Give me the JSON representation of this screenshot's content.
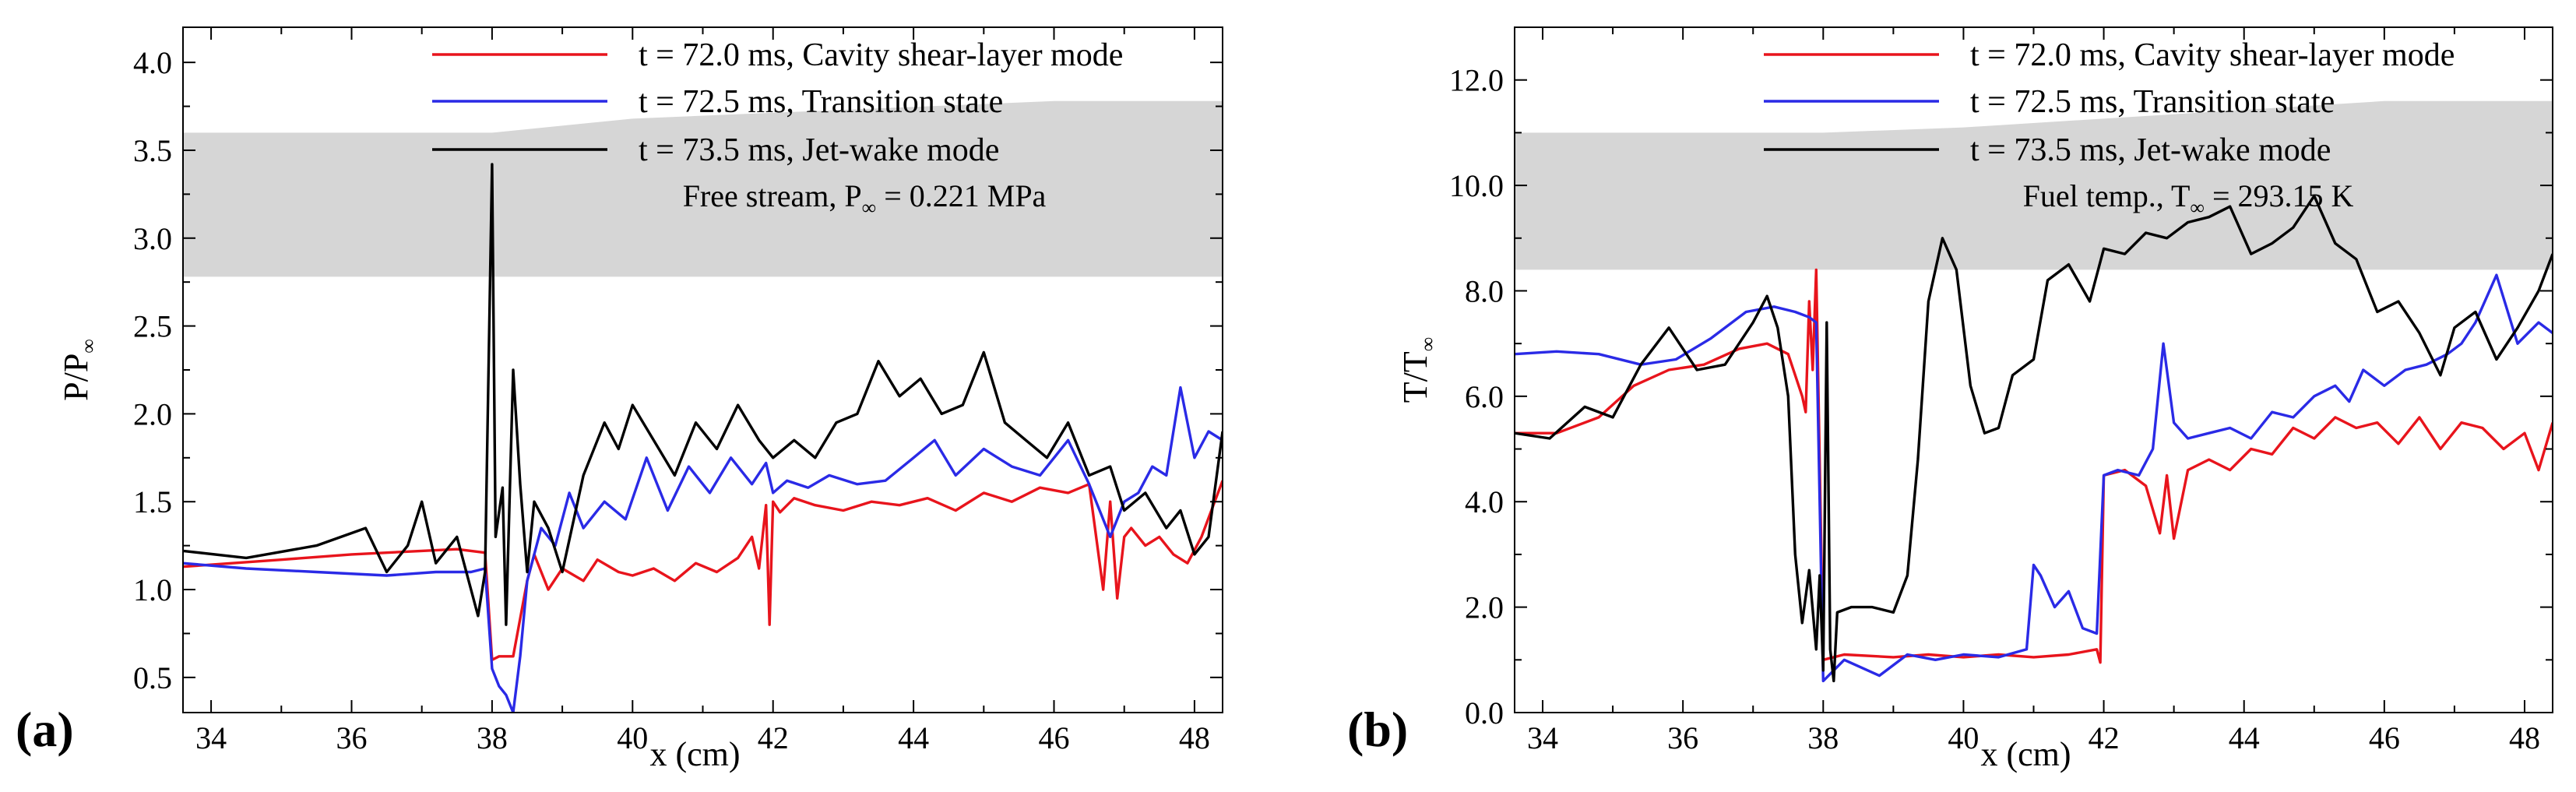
{
  "colors": {
    "red": "#e8141c",
    "blue": "#2a2ae6",
    "black": "#000000",
    "band": "#d6d6d6"
  },
  "chart_data": [
    {
      "type": "line",
      "panel_label": "(a)",
      "xlabel": "x (cm)",
      "ylabel": "P/P",
      "ylabel_sub": "∞",
      "xlim": [
        33.6,
        48.4
      ],
      "ylim": [
        0.3,
        4.2
      ],
      "x_ticks": [
        "34",
        "36",
        "38",
        "40",
        "42",
        "44",
        "46",
        "48"
      ],
      "y_ticks": [
        "0.5",
        "1.0",
        "1.5",
        "2.0",
        "2.5",
        "3.0",
        "3.5",
        "4.0"
      ],
      "annotation": {
        "text": "Free stream, P",
        "sub": "∞",
        "rest": " = 0.221 MPa"
      },
      "legend_band": [
        [
          33.6,
          3.6
        ],
        [
          38,
          3.6
        ],
        [
          40,
          3.68
        ],
        [
          46,
          3.78
        ],
        [
          48.4,
          3.78
        ]
      ],
      "legend_band_bottom": 2.78,
      "series": [
        {
          "name": "t = 72.0 ms, Cavity shear-layer mode",
          "color": "#e8141c",
          "x": [
            33.6,
            35,
            36,
            37,
            37.5,
            37.9,
            38.0,
            38.1,
            38.3,
            38.5,
            38.6,
            38.8,
            39.0,
            39.3,
            39.5,
            39.8,
            40.0,
            40.3,
            40.6,
            40.9,
            41.2,
            41.5,
            41.7,
            41.8,
            41.9,
            41.95,
            42.0,
            42.1,
            42.3,
            42.6,
            43.0,
            43.4,
            43.8,
            44.2,
            44.6,
            45.0,
            45.4,
            45.8,
            46.2,
            46.5,
            46.7,
            46.8,
            46.9,
            47.0,
            47.1,
            47.3,
            47.5,
            47.7,
            47.9,
            48.1,
            48.4
          ],
          "y": [
            1.13,
            1.17,
            1.2,
            1.22,
            1.23,
            1.21,
            0.6,
            0.62,
            0.62,
            1.05,
            1.2,
            1.0,
            1.12,
            1.05,
            1.17,
            1.1,
            1.08,
            1.12,
            1.05,
            1.15,
            1.1,
            1.18,
            1.3,
            1.12,
            1.48,
            0.8,
            1.5,
            1.44,
            1.52,
            1.48,
            1.45,
            1.5,
            1.48,
            1.52,
            1.45,
            1.55,
            1.5,
            1.58,
            1.55,
            1.6,
            1.0,
            1.5,
            0.95,
            1.3,
            1.35,
            1.25,
            1.3,
            1.2,
            1.15,
            1.3,
            1.62
          ]
        },
        {
          "name": "t = 72.5 ms, Transition state",
          "color": "#2a2ae6",
          "x": [
            33.6,
            34.5,
            35.5,
            36.5,
            37.2,
            37.7,
            37.9,
            38.0,
            38.1,
            38.2,
            38.3,
            38.4,
            38.5,
            38.7,
            38.9,
            39.1,
            39.3,
            39.6,
            39.9,
            40.2,
            40.5,
            40.8,
            41.1,
            41.4,
            41.7,
            41.9,
            42.0,
            42.2,
            42.5,
            42.8,
            43.2,
            43.6,
            44.0,
            44.3,
            44.6,
            45.0,
            45.4,
            45.8,
            46.2,
            46.5,
            46.8,
            47.0,
            47.2,
            47.4,
            47.6,
            47.8,
            48.0,
            48.2,
            48.4
          ],
          "y": [
            1.15,
            1.12,
            1.1,
            1.08,
            1.1,
            1.1,
            1.12,
            0.55,
            0.45,
            0.4,
            0.3,
            0.62,
            1.05,
            1.35,
            1.25,
            1.55,
            1.35,
            1.5,
            1.4,
            1.75,
            1.45,
            1.7,
            1.55,
            1.75,
            1.6,
            1.72,
            1.55,
            1.62,
            1.58,
            1.65,
            1.6,
            1.62,
            1.75,
            1.85,
            1.65,
            1.8,
            1.7,
            1.65,
            1.85,
            1.6,
            1.3,
            1.5,
            1.55,
            1.7,
            1.65,
            2.15,
            1.75,
            1.9,
            1.85
          ]
        },
        {
          "name": "t = 73.5 ms, Jet-wake mode",
          "color": "#000000",
          "x": [
            33.6,
            34.5,
            35.5,
            36.2,
            36.5,
            36.8,
            37.0,
            37.2,
            37.5,
            37.8,
            37.9,
            38.0,
            38.05,
            38.15,
            38.2,
            38.3,
            38.4,
            38.5,
            38.6,
            38.8,
            39.0,
            39.3,
            39.6,
            39.8,
            40.0,
            40.3,
            40.6,
            40.9,
            41.2,
            41.5,
            41.8,
            42.0,
            42.3,
            42.6,
            42.9,
            43.2,
            43.5,
            43.8,
            44.1,
            44.4,
            44.7,
            45.0,
            45.3,
            45.6,
            45.9,
            46.2,
            46.5,
            46.8,
            47.0,
            47.3,
            47.6,
            47.8,
            48.0,
            48.2,
            48.4
          ],
          "y": [
            1.22,
            1.18,
            1.25,
            1.35,
            1.1,
            1.25,
            1.5,
            1.15,
            1.3,
            0.85,
            1.1,
            3.42,
            1.3,
            1.58,
            0.8,
            2.25,
            1.6,
            1.1,
            1.5,
            1.35,
            1.1,
            1.65,
            1.95,
            1.8,
            2.05,
            1.85,
            1.65,
            1.95,
            1.8,
            2.05,
            1.85,
            1.75,
            1.85,
            1.75,
            1.95,
            2.0,
            2.3,
            2.1,
            2.2,
            2.0,
            2.05,
            2.35,
            1.95,
            1.85,
            1.75,
            1.95,
            1.65,
            1.7,
            1.45,
            1.55,
            1.35,
            1.45,
            1.2,
            1.3,
            1.9
          ]
        }
      ]
    },
    {
      "type": "line",
      "panel_label": "(b)",
      "xlabel": "x (cm)",
      "ylabel": "T/T",
      "ylabel_sub": "∞",
      "xlim": [
        33.6,
        48.4
      ],
      "ylim": [
        0.0,
        13.0
      ],
      "x_ticks": [
        "34",
        "36",
        "38",
        "40",
        "42",
        "44",
        "46",
        "48"
      ],
      "y_ticks": [
        "0.0",
        "2.0",
        "4.0",
        "6.0",
        "8.0",
        "10.0",
        "12.0"
      ],
      "annotation": {
        "text": "Fuel temp., T",
        "sub": "∞",
        "rest": " = 293.15 K"
      },
      "legend_band": [
        [
          33.6,
          11.0
        ],
        [
          38,
          11.0
        ],
        [
          40,
          11.1
        ],
        [
          46,
          11.6
        ],
        [
          48.4,
          11.6
        ]
      ],
      "legend_band_bottom": 8.4,
      "series": [
        {
          "name": "t = 72.0 ms, Cavity shear-layer mode",
          "color": "#e8141c",
          "x": [
            33.6,
            34.2,
            34.8,
            35.3,
            35.8,
            36.3,
            36.8,
            37.2,
            37.5,
            37.7,
            37.75,
            37.8,
            37.85,
            37.9,
            38.0,
            38.3,
            39.0,
            39.5,
            40.0,
            40.5,
            41.0,
            41.5,
            41.9,
            41.95,
            42.0,
            42.3,
            42.6,
            42.8,
            42.9,
            43.0,
            43.2,
            43.5,
            43.8,
            44.1,
            44.4,
            44.7,
            45.0,
            45.3,
            45.6,
            45.9,
            46.2,
            46.5,
            46.8,
            47.1,
            47.4,
            47.7,
            48.0,
            48.2,
            48.4
          ],
          "y": [
            5.3,
            5.3,
            5.6,
            6.2,
            6.5,
            6.6,
            6.9,
            7.0,
            6.8,
            6.0,
            5.7,
            7.8,
            6.5,
            8.4,
            1.0,
            1.1,
            1.05,
            1.1,
            1.05,
            1.1,
            1.05,
            1.1,
            1.2,
            0.95,
            4.5,
            4.6,
            4.3,
            3.4,
            4.5,
            3.3,
            4.6,
            4.8,
            4.6,
            5.0,
            4.9,
            5.4,
            5.2,
            5.6,
            5.4,
            5.5,
            5.1,
            5.6,
            5.0,
            5.5,
            5.4,
            5.0,
            5.3,
            4.6,
            5.5
          ]
        },
        {
          "name": "t = 72.5 ms, Transition state",
          "color": "#2a2ae6",
          "x": [
            33.6,
            34.2,
            34.8,
            35.4,
            35.9,
            36.4,
            36.9,
            37.3,
            37.6,
            37.8,
            37.9,
            38.0,
            38.3,
            38.8,
            39.2,
            39.6,
            40.0,
            40.5,
            40.9,
            41.0,
            41.1,
            41.3,
            41.5,
            41.7,
            41.9,
            42.0,
            42.2,
            42.5,
            42.7,
            42.85,
            43.0,
            43.2,
            43.5,
            43.8,
            44.1,
            44.4,
            44.7,
            45.0,
            45.3,
            45.5,
            45.7,
            46.0,
            46.3,
            46.6,
            46.9,
            47.1,
            47.3,
            47.6,
            47.9,
            48.2,
            48.4
          ],
          "y": [
            6.8,
            6.85,
            6.8,
            6.6,
            6.7,
            7.1,
            7.6,
            7.7,
            7.6,
            7.5,
            7.4,
            0.6,
            1.0,
            0.7,
            1.1,
            1.0,
            1.1,
            1.05,
            1.2,
            2.8,
            2.6,
            2.0,
            2.3,
            1.6,
            1.5,
            4.5,
            4.6,
            4.5,
            5.0,
            7.0,
            5.5,
            5.2,
            5.3,
            5.4,
            5.2,
            5.7,
            5.6,
            6.0,
            6.2,
            5.9,
            6.5,
            6.2,
            6.5,
            6.6,
            6.8,
            7.0,
            7.4,
            8.3,
            7.0,
            7.4,
            7.2
          ]
        },
        {
          "name": "t = 73.5 ms, Jet-wake mode",
          "color": "#000000",
          "x": [
            33.6,
            34.1,
            34.6,
            35.0,
            35.4,
            35.8,
            36.2,
            36.6,
            37.0,
            37.2,
            37.35,
            37.5,
            37.6,
            37.7,
            37.8,
            37.9,
            37.95,
            38.0,
            38.05,
            38.1,
            38.15,
            38.2,
            38.4,
            38.7,
            39.0,
            39.2,
            39.35,
            39.5,
            39.7,
            39.9,
            40.1,
            40.3,
            40.5,
            40.7,
            41.0,
            41.2,
            41.5,
            41.8,
            42.0,
            42.3,
            42.6,
            42.9,
            43.2,
            43.5,
            43.8,
            44.1,
            44.4,
            44.7,
            45.0,
            45.3,
            45.6,
            45.9,
            46.2,
            46.5,
            46.8,
            47.0,
            47.3,
            47.6,
            47.9,
            48.2,
            48.4
          ],
          "y": [
            5.3,
            5.2,
            5.8,
            5.6,
            6.6,
            7.3,
            6.5,
            6.6,
            7.4,
            7.9,
            7.3,
            6.0,
            3.0,
            1.7,
            2.7,
            1.2,
            2.6,
            0.8,
            7.4,
            1.2,
            0.6,
            1.9,
            2.0,
            2.0,
            1.9,
            2.6,
            4.8,
            7.8,
            9.0,
            8.4,
            6.2,
            5.3,
            5.4,
            6.4,
            6.7,
            8.2,
            8.5,
            7.8,
            8.8,
            8.7,
            9.1,
            9.0,
            9.3,
            9.4,
            9.6,
            8.7,
            8.9,
            9.2,
            9.8,
            8.9,
            8.6,
            7.6,
            7.8,
            7.2,
            6.4,
            7.3,
            7.6,
            6.7,
            7.3,
            8.0,
            8.7
          ]
        }
      ]
    }
  ]
}
